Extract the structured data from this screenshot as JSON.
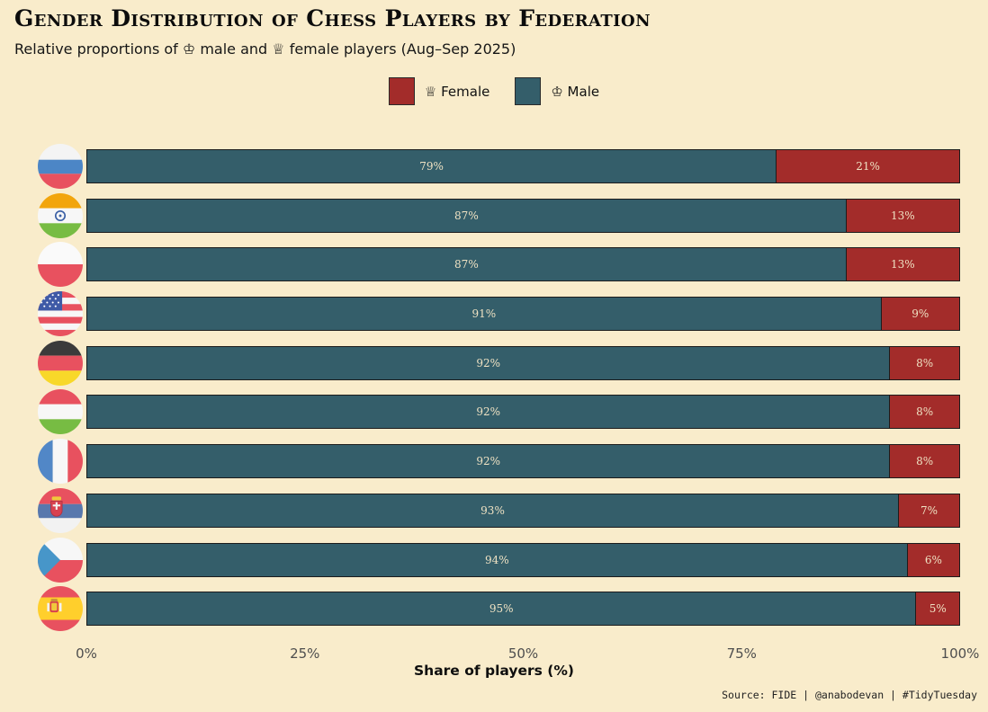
{
  "title": "Gender Distribution of Chess Players by Federation",
  "subtitle": "Relative proportions of ♔ male and ♕ female players (Aug–Sep 2025)",
  "legend": {
    "female_label": "♕ Female",
    "male_label": "♔ Male"
  },
  "colors": {
    "female": "#A32C2A",
    "male": "#345E6A",
    "background": "#F9ECCB",
    "bar_label": "#EFE2C3"
  },
  "chart_data": {
    "type": "bar",
    "orientation": "horizontal",
    "stacked": true,
    "title": "Gender Distribution of Chess Players by Federation",
    "subtitle": "Relative proportions of ♔ male and ♕ female players (Aug–Sep 2025)",
    "categories": [
      "Russia",
      "India",
      "Poland",
      "United States",
      "Germany",
      "Hungary",
      "France",
      "Serbia",
      "Czechia",
      "Spain"
    ],
    "series": [
      {
        "name": "Male",
        "values": [
          79,
          87,
          87,
          91,
          92,
          92,
          92,
          93,
          94,
          95
        ]
      },
      {
        "name": "Female",
        "values": [
          21,
          13,
          13,
          9,
          8,
          8,
          8,
          7,
          6,
          5
        ]
      }
    ],
    "xlabel": "Share of players (%)",
    "xlim": [
      0,
      100
    ],
    "x_ticks": [
      "0%",
      "25%",
      "50%",
      "75%",
      "100%"
    ],
    "legend_position": "top",
    "grid": false
  },
  "axis": {
    "ticks": [
      "0%",
      "25%",
      "50%",
      "75%",
      "100%"
    ],
    "label": "Share of players (%)"
  },
  "rows": [
    {
      "country": "Russia",
      "male_pct": 79,
      "female_pct": 21,
      "male_label": "79%",
      "female_label": "21%"
    },
    {
      "country": "India",
      "male_pct": 87,
      "female_pct": 13,
      "male_label": "87%",
      "female_label": "13%"
    },
    {
      "country": "Poland",
      "male_pct": 87,
      "female_pct": 13,
      "male_label": "87%",
      "female_label": "13%"
    },
    {
      "country": "United States",
      "male_pct": 91,
      "female_pct": 9,
      "male_label": "91%",
      "female_label": "9%"
    },
    {
      "country": "Germany",
      "male_pct": 92,
      "female_pct": 8,
      "male_label": "92%",
      "female_label": "8%"
    },
    {
      "country": "Hungary",
      "male_pct": 92,
      "female_pct": 8,
      "male_label": "92%",
      "female_label": "8%"
    },
    {
      "country": "France",
      "male_pct": 92,
      "female_pct": 8,
      "male_label": "92%",
      "female_label": "8%"
    },
    {
      "country": "Serbia",
      "male_pct": 93,
      "female_pct": 7,
      "male_label": "93%",
      "female_label": "7%"
    },
    {
      "country": "Czechia",
      "male_pct": 94,
      "female_pct": 6,
      "male_label": "94%",
      "female_label": "6%"
    },
    {
      "country": "Spain",
      "male_pct": 95,
      "female_pct": 5,
      "male_label": "95%",
      "female_label": "5%"
    }
  ],
  "source": "Source: FIDE | @anabodevan | #TidyTuesday"
}
